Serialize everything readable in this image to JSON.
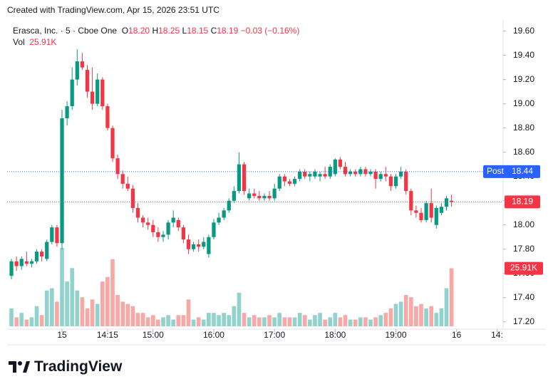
{
  "header": {
    "text": "Created with TradingView.com, Apr 15, 2026 23:51 UTC"
  },
  "chart_data": {
    "type": "candlestick",
    "symbol": "Erasca, Inc. · 5 · Cboe One",
    "legend": {
      "ohlc": [
        {
          "key": "O",
          "value": 18.2,
          "label": "18.20"
        },
        {
          "key": "H",
          "value": 18.25,
          "label": "18.25"
        },
        {
          "key": "L",
          "value": 18.15,
          "label": "18.15"
        },
        {
          "key": "C",
          "value": 18.19,
          "label": "18.19"
        }
      ],
      "change": "−0.03 (−0.16%)",
      "volume_title": "Vol",
      "volume": {
        "value": 25910,
        "label": "25.91K"
      }
    },
    "open": [
      17.58,
      17.7,
      17.66,
      17.7,
      17.68,
      17.7,
      17.78,
      17.72,
      17.86,
      17.98,
      17.85,
      18.88,
      18.98,
      19.2,
      19.35,
      19.28,
      19.1,
      19.0,
      19.2,
      18.98,
      18.8,
      18.55,
      18.42,
      18.34,
      18.3,
      18.14,
      18.06,
      18.02,
      18.0,
      17.94,
      17.9,
      17.92,
      18.02,
      18.04,
      17.98,
      17.88,
      17.8,
      17.84,
      17.82,
      17.76,
      17.9,
      18.02,
      18.06,
      18.12,
      18.2,
      18.28,
      18.5,
      18.22,
      18.26,
      18.24,
      18.22,
      18.24,
      18.22,
      18.3,
      18.4,
      18.36,
      18.34,
      18.38,
      18.44,
      18.4,
      18.4,
      18.4,
      18.42,
      18.4,
      18.42,
      18.54,
      18.48,
      18.42,
      18.44,
      18.42,
      18.46,
      18.42,
      18.44,
      18.38,
      18.42,
      18.4,
      18.32,
      18.4,
      18.44,
      18.28,
      18.12,
      18.1,
      18.04,
      18.18,
      18.0,
      18.1,
      18.15,
      18.2
    ],
    "high": [
      17.72,
      17.74,
      17.74,
      17.78,
      17.72,
      17.8,
      17.8,
      17.88,
      18.0,
      18.0,
      18.95,
      19.02,
      19.3,
      19.45,
      19.42,
      19.32,
      19.3,
      19.25,
      19.22,
      19.0,
      18.82,
      18.58,
      18.45,
      18.4,
      18.33,
      18.18,
      18.08,
      18.06,
      18.04,
      17.98,
      17.95,
      18.04,
      18.12,
      18.06,
      18.0,
      17.92,
      17.86,
      17.88,
      17.9,
      17.92,
      18.05,
      18.1,
      18.14,
      18.22,
      18.32,
      18.6,
      18.52,
      18.3,
      18.3,
      18.28,
      18.26,
      18.28,
      18.34,
      18.42,
      18.42,
      18.38,
      18.4,
      18.46,
      18.46,
      18.44,
      18.46,
      18.44,
      18.48,
      18.5,
      18.55,
      18.56,
      18.52,
      18.46,
      18.46,
      18.48,
      18.48,
      18.46,
      18.46,
      18.44,
      18.48,
      18.42,
      18.42,
      18.48,
      18.46,
      18.3,
      18.16,
      18.14,
      18.2,
      18.3,
      18.16,
      18.18,
      18.24,
      18.25
    ],
    "low": [
      17.55,
      17.62,
      17.63,
      17.66,
      17.65,
      17.68,
      17.7,
      17.7,
      17.84,
      17.82,
      17.8,
      18.82,
      18.95,
      19.15,
      19.28,
      19.05,
      18.95,
      18.98,
      18.95,
      18.78,
      18.52,
      18.38,
      18.3,
      18.28,
      18.1,
      18.02,
      17.98,
      17.96,
      17.9,
      17.86,
      17.86,
      17.88,
      17.98,
      17.95,
      17.85,
      17.76,
      17.78,
      17.78,
      17.8,
      17.73,
      17.88,
      18.0,
      18.04,
      18.1,
      18.18,
      18.26,
      18.25,
      18.2,
      18.22,
      18.2,
      18.2,
      18.2,
      18.2,
      18.28,
      18.32,
      18.32,
      18.32,
      18.36,
      18.38,
      18.36,
      18.38,
      18.36,
      18.38,
      18.38,
      18.4,
      18.46,
      18.4,
      18.4,
      18.4,
      18.4,
      18.4,
      18.4,
      18.3,
      18.36,
      18.36,
      18.28,
      18.3,
      18.38,
      18.25,
      18.08,
      18.06,
      18.02,
      18.02,
      18.02,
      17.97,
      18.08,
      18.12,
      18.15
    ],
    "close": [
      17.7,
      17.66,
      17.72,
      17.68,
      17.7,
      17.78,
      17.74,
      17.86,
      17.98,
      17.85,
      18.88,
      18.98,
      19.2,
      19.35,
      19.3,
      19.1,
      19.0,
      19.2,
      18.98,
      18.8,
      18.55,
      18.42,
      18.34,
      18.3,
      18.14,
      18.06,
      18.02,
      18.0,
      17.94,
      17.9,
      17.92,
      18.02,
      18.06,
      17.98,
      17.88,
      17.8,
      17.84,
      17.82,
      17.86,
      17.9,
      18.02,
      18.06,
      18.12,
      18.2,
      18.28,
      18.5,
      18.28,
      18.26,
      18.24,
      18.22,
      18.24,
      18.22,
      18.3,
      18.4,
      18.36,
      18.34,
      18.38,
      18.44,
      18.4,
      18.42,
      18.44,
      18.42,
      18.4,
      18.48,
      18.54,
      18.48,
      18.42,
      18.44,
      18.42,
      18.46,
      18.42,
      18.44,
      18.38,
      18.42,
      18.4,
      18.32,
      18.4,
      18.44,
      18.28,
      18.12,
      18.1,
      18.04,
      18.18,
      18.06,
      18.14,
      18.15,
      18.22,
      18.19
    ],
    "volume": [
      8000,
      4000,
      6000,
      3000,
      4000,
      9000,
      5000,
      16000,
      17000,
      11000,
      35000,
      20000,
      26000,
      16000,
      13000,
      8000,
      12000,
      10000,
      20000,
      22000,
      30000,
      14000,
      11000,
      10000,
      9000,
      6000,
      6000,
      4000,
      5000,
      3000,
      4000,
      5000,
      3000,
      5000,
      5000,
      12000,
      3000,
      4000,
      3000,
      6000,
      6000,
      5000,
      6000,
      5000,
      9000,
      15000,
      6000,
      4000,
      5000,
      4000,
      4000,
      5000,
      4000,
      6000,
      4000,
      4000,
      4000,
      6000,
      5000,
      3000,
      5000,
      6000,
      3000,
      4000,
      6000,
      4000,
      5000,
      3000,
      3000,
      4000,
      4000,
      3000,
      4000,
      5000,
      6000,
      8000,
      10000,
      11000,
      14000,
      13000,
      9000,
      10000,
      8000,
      9000,
      6000,
      8000,
      17000,
      25910
    ],
    "colors": {
      "up": "#089981",
      "down": "#f23645",
      "volume_up": "#92d2cc",
      "volume_down": "#f7a9a7",
      "post": "#2962ff"
    },
    "ylim": [
      17.14,
      19.68
    ],
    "yticks": [
      {
        "value": 17.2,
        "label": "17.20"
      },
      {
        "value": 17.4,
        "label": "17.40"
      },
      {
        "value": 17.6,
        "label": "17.60"
      },
      {
        "value": 17.8,
        "label": "17.80"
      },
      {
        "value": 18.0,
        "label": "18.00"
      },
      {
        "value": 18.2,
        "label": "18.20"
      },
      {
        "value": 18.4,
        "label": "18.40"
      },
      {
        "value": 18.6,
        "label": "18.60"
      },
      {
        "value": 18.8,
        "label": "18.80"
      },
      {
        "value": 19.0,
        "label": "19.00"
      },
      {
        "value": 19.2,
        "label": "19.20"
      },
      {
        "value": 19.4,
        "label": "19.40"
      },
      {
        "value": 19.6,
        "label": "19.60"
      }
    ],
    "xlim": [
      -0.85,
      97.2
    ],
    "xticks": [
      {
        "value": 10,
        "label": "15"
      },
      {
        "value": 19,
        "label": "14:15"
      },
      {
        "value": 28,
        "label": "15:00"
      },
      {
        "value": 40,
        "label": "16:00"
      },
      {
        "value": 52,
        "label": "17:00"
      },
      {
        "value": 64,
        "label": "18:00"
      },
      {
        "value": 76,
        "label": "19:00"
      },
      {
        "value": 88,
        "label": "16"
      },
      {
        "value": 96,
        "label": "14:"
      }
    ],
    "post": {
      "label": "Post",
      "price": {
        "value": 18.44,
        "label": "18.44"
      }
    }
  },
  "brand": "TradingView"
}
